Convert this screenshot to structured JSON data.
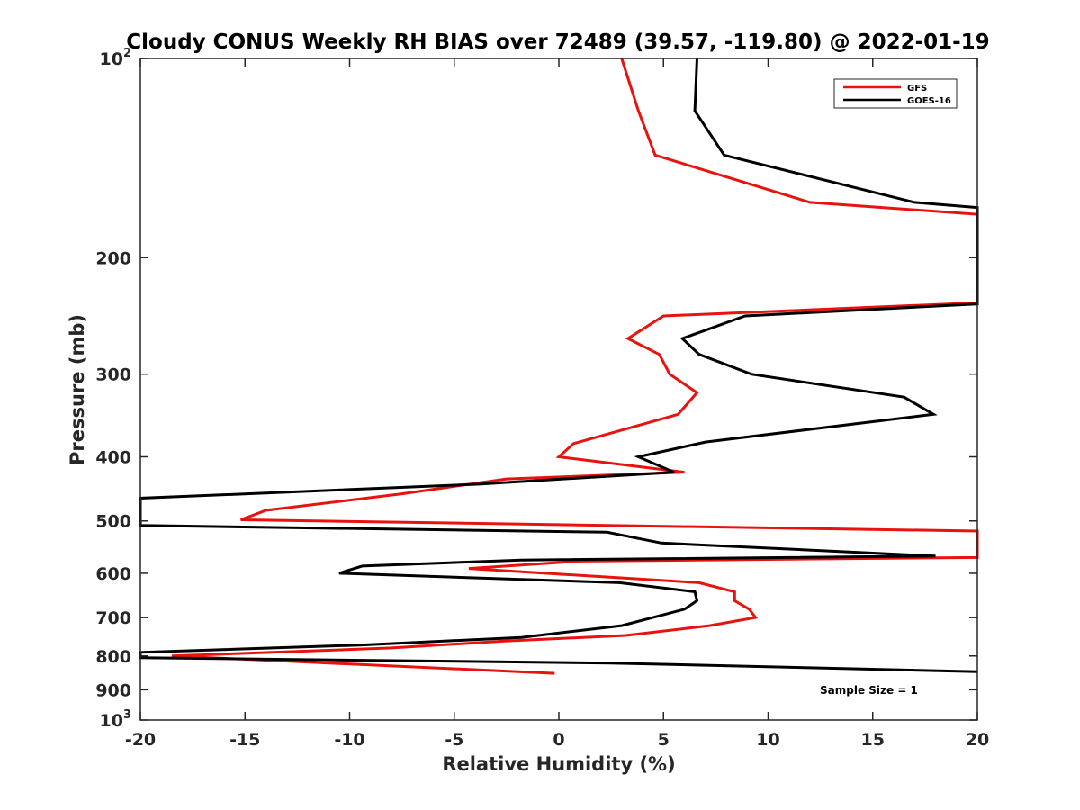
{
  "chart_data": {
    "type": "line",
    "title": "Cloudy CONUS Weekly RH BIAS over 72489 (39.57, -119.80) @ 2022-01-19",
    "xlabel": "Relative Humidity (%)",
    "ylabel": "Pressure (mb)",
    "xlim": [
      -20,
      20
    ],
    "ylim": [
      1000,
      100
    ],
    "y_scale": "log",
    "y_reversed": true,
    "x_ticks": [
      "-20",
      "-15",
      "-10",
      "-5",
      "0",
      "5",
      "10",
      "15",
      "20"
    ],
    "y_ticks": [
      {
        "value": 100,
        "base": "10",
        "exp": "2"
      },
      {
        "value": 200,
        "label": "200"
      },
      {
        "value": 300,
        "label": "300"
      },
      {
        "value": 400,
        "label": "400"
      },
      {
        "value": 500,
        "label": "500"
      },
      {
        "value": 600,
        "label": "600"
      },
      {
        "value": 700,
        "label": "700"
      },
      {
        "value": 800,
        "label": "800"
      },
      {
        "value": 900,
        "label": "900"
      },
      {
        "value": 1000,
        "base": "10",
        "exp": "3"
      }
    ],
    "grid": false,
    "legend_position": "top-right",
    "annotation": "Sample Size = 1",
    "series": [
      {
        "name": "GFS",
        "color": "#e8120f",
        "points": [
          [
            3,
            100
          ],
          [
            3.8,
            120
          ],
          [
            4.6,
            140
          ],
          [
            12,
            165
          ],
          [
            20,
            172
          ],
          [
            20,
            234
          ],
          [
            5,
            245
          ],
          [
            3.3,
            265
          ],
          [
            4.8,
            280
          ],
          [
            5.3,
            300
          ],
          [
            6.6,
            320
          ],
          [
            5.7,
            345
          ],
          [
            0.7,
            382
          ],
          [
            0,
            400
          ],
          [
            6,
            422
          ],
          [
            -2.5,
            432
          ],
          [
            -7.5,
            455
          ],
          [
            -14,
            482
          ],
          [
            -15.2,
            498
          ],
          [
            20,
            518
          ],
          [
            20,
            568
          ],
          [
            1,
            575
          ],
          [
            -4.3,
            590
          ],
          [
            6.7,
            620
          ],
          [
            8.4,
            640
          ],
          [
            8.4,
            660
          ],
          [
            9.1,
            680
          ],
          [
            9.4,
            700
          ],
          [
            7.2,
            720
          ],
          [
            3.2,
            745
          ],
          [
            -2.7,
            760
          ],
          [
            -8,
            778
          ],
          [
            -18.5,
            800
          ],
          [
            -0.2,
            850
          ]
        ]
      },
      {
        "name": "GOES-16",
        "color": "#000000",
        "points": [
          [
            6.6,
            100
          ],
          [
            6.5,
            120
          ],
          [
            7.9,
            140
          ],
          [
            17,
            165
          ],
          [
            20,
            168
          ],
          [
            20,
            235
          ],
          [
            8.9,
            245
          ],
          [
            5.9,
            265
          ],
          [
            6.7,
            280
          ],
          [
            9.2,
            300
          ],
          [
            16.5,
            325
          ],
          [
            17.9,
            345
          ],
          [
            7,
            380
          ],
          [
            3.8,
            400
          ],
          [
            5.5,
            422
          ],
          [
            -3.8,
            440
          ],
          [
            -20,
            462
          ],
          [
            -20,
            508
          ],
          [
            2.3,
            520
          ],
          [
            4.9,
            540
          ],
          [
            18,
            565
          ],
          [
            -1.8,
            573
          ],
          [
            -9.4,
            585
          ],
          [
            -10.5,
            600
          ],
          [
            2.9,
            620
          ],
          [
            6.5,
            640
          ],
          [
            6.6,
            660
          ],
          [
            6,
            680
          ],
          [
            3,
            720
          ],
          [
            -1.8,
            750
          ],
          [
            -9.4,
            770
          ],
          [
            -20,
            790
          ],
          [
            -20,
            805
          ],
          [
            2.5,
            820
          ],
          [
            20,
            845
          ]
        ]
      }
    ]
  }
}
